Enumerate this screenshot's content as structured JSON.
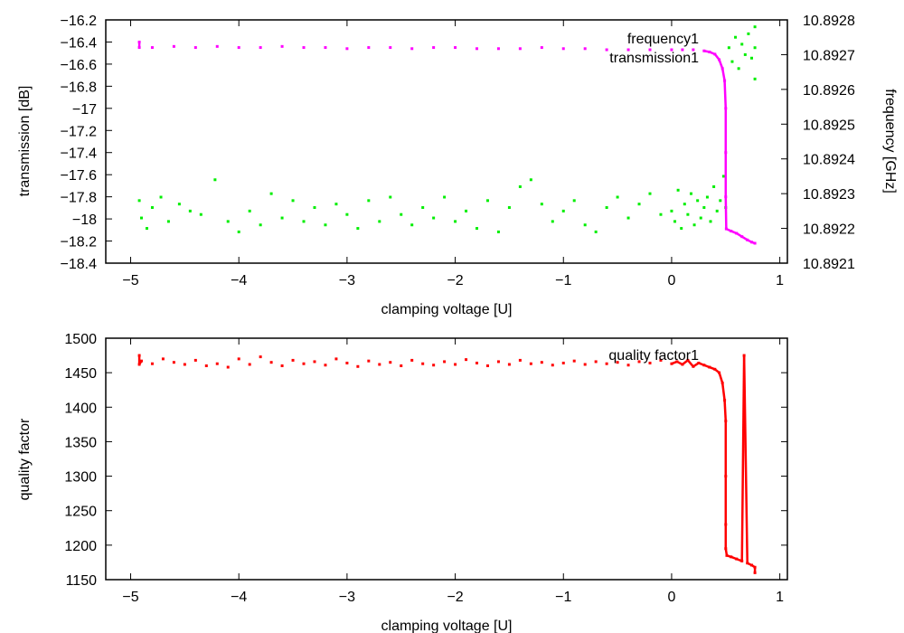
{
  "chart_data": [
    {
      "type": "scatter",
      "xlabel": "clamping voltage [U]",
      "ylabel": "transmission [dB]",
      "y2label": "frequency [GHz]",
      "xlim": [
        -5.23,
        1.07
      ],
      "ylim": [
        -18.4,
        -16.2
      ],
      "y2lim": [
        10.8921,
        10.8928
      ],
      "xticks": [
        -5,
        -4,
        -3,
        -2,
        -1,
        0,
        1
      ],
      "xtick_labels": [
        "−5",
        "−4",
        "−3",
        "−2",
        "−1",
        "0",
        "1"
      ],
      "yticks": [
        -16.2,
        -16.4,
        -16.6,
        -16.8,
        -17,
        -17.2,
        -17.4,
        -17.6,
        -17.8,
        -18,
        -18.2,
        -18.4
      ],
      "ytick_labels": [
        "−16.2",
        "−16.4",
        "−16.6",
        "−16.8",
        "−17",
        "−17.2",
        "−17.4",
        "−17.6",
        "−17.8",
        "−18",
        "−18.2",
        "−18.4"
      ],
      "y2ticks": [
        10.8928,
        10.8927,
        10.8926,
        10.8925,
        10.8924,
        10.8923,
        10.8922,
        10.8921
      ],
      "y2tick_labels": [
        "10.8928",
        "10.8927",
        "10.8926",
        "10.8925",
        "10.8924",
        "10.8923",
        "10.8922",
        "10.8921"
      ],
      "grid": false,
      "legend": "top-right",
      "series": [
        {
          "name": "frequency1",
          "axis": "y2",
          "color": "#00ee00",
          "x": [
            -4.92,
            -4.9,
            -4.85,
            -4.8,
            -4.72,
            -4.65,
            -4.55,
            -4.45,
            -4.35,
            -4.22,
            -4.1,
            -4.0,
            -3.9,
            -3.8,
            -3.7,
            -3.6,
            -3.5,
            -3.4,
            -3.3,
            -3.2,
            -3.1,
            -3.0,
            -2.9,
            -2.8,
            -2.7,
            -2.6,
            -2.5,
            -2.4,
            -2.3,
            -2.2,
            -2.1,
            -2.0,
            -1.9,
            -1.8,
            -1.7,
            -1.6,
            -1.5,
            -1.4,
            -1.3,
            -1.2,
            -1.1,
            -1.0,
            -0.9,
            -0.8,
            -0.7,
            -0.6,
            -0.5,
            -0.4,
            -0.3,
            -0.2,
            -0.1,
            0.0,
            0.03,
            0.06,
            0.09,
            0.12,
            0.15,
            0.18,
            0.21,
            0.24,
            0.27,
            0.3,
            0.33,
            0.36,
            0.39,
            0.42,
            0.45,
            0.48,
            0.5,
            0.53,
            0.56,
            0.59,
            0.62,
            0.65,
            0.68,
            0.71,
            0.74,
            0.77,
            0.77,
            0.77
          ],
          "y": [
            10.89228,
            10.89223,
            10.8922,
            10.89226,
            10.89229,
            10.89222,
            10.89227,
            10.89225,
            10.89224,
            10.89234,
            10.89222,
            10.89219,
            10.89225,
            10.89221,
            10.8923,
            10.89223,
            10.89228,
            10.89222,
            10.89226,
            10.89221,
            10.89227,
            10.89224,
            10.8922,
            10.89228,
            10.89222,
            10.89229,
            10.89224,
            10.89221,
            10.89226,
            10.89223,
            10.89229,
            10.89222,
            10.89225,
            10.8922,
            10.89228,
            10.89219,
            10.89226,
            10.89232,
            10.89234,
            10.89227,
            10.89222,
            10.89225,
            10.89228,
            10.89221,
            10.89219,
            10.89226,
            10.89229,
            10.89223,
            10.89227,
            10.8923,
            10.89224,
            10.89225,
            10.89222,
            10.89231,
            10.8922,
            10.89227,
            10.89224,
            10.8923,
            10.89221,
            10.89228,
            10.89223,
            10.89226,
            10.89229,
            10.89222,
            10.89232,
            10.89225,
            10.89228,
            10.89235,
            10.89226,
            10.89272,
            10.89268,
            10.89275,
            10.89266,
            10.89273,
            10.8927,
            10.89276,
            10.89269,
            10.89278,
            10.89263,
            10.89272
          ]
        },
        {
          "name": "transmission1",
          "axis": "y",
          "color": "#ff00ff",
          "x": [
            -4.92,
            -4.92,
            -4.8,
            -4.6,
            -4.4,
            -4.2,
            -4.0,
            -3.8,
            -3.6,
            -3.4,
            -3.2,
            -3.0,
            -2.8,
            -2.6,
            -2.4,
            -2.2,
            -2.0,
            -1.8,
            -1.6,
            -1.4,
            -1.2,
            -1.0,
            -0.8,
            -0.6,
            -0.4,
            -0.2,
            0.0,
            0.1,
            0.2,
            0.3,
            0.35,
            0.4,
            0.44,
            0.47,
            0.49,
            0.5,
            0.5,
            0.5,
            0.505,
            0.55,
            0.6,
            0.65,
            0.7,
            0.74,
            0.77
          ],
          "y": [
            -16.4,
            -16.45,
            -16.45,
            -16.44,
            -16.45,
            -16.44,
            -16.45,
            -16.45,
            -16.44,
            -16.45,
            -16.45,
            -16.46,
            -16.45,
            -16.45,
            -16.46,
            -16.45,
            -16.45,
            -16.46,
            -16.46,
            -16.46,
            -16.45,
            -16.46,
            -16.46,
            -16.47,
            -16.47,
            -16.47,
            -16.47,
            -16.47,
            -16.47,
            -16.48,
            -16.49,
            -16.51,
            -16.56,
            -16.64,
            -16.75,
            -17.0,
            -17.4,
            -17.8,
            -18.09,
            -18.11,
            -18.13,
            -18.16,
            -18.19,
            -18.21,
            -18.22
          ]
        }
      ]
    },
    {
      "type": "scatter",
      "xlabel": "clamping voltage [U]",
      "ylabel": "quality factor",
      "xlim": [
        -5.23,
        1.07
      ],
      "ylim": [
        1150,
        1500
      ],
      "xticks": [
        -5,
        -4,
        -3,
        -2,
        -1,
        0,
        1
      ],
      "xtick_labels": [
        "−5",
        "−4",
        "−3",
        "−2",
        "−1",
        "0",
        "1"
      ],
      "yticks": [
        1500,
        1450,
        1400,
        1350,
        1300,
        1250,
        1200,
        1150
      ],
      "ytick_labels": [
        "1500",
        "1450",
        "1400",
        "1350",
        "1300",
        "1250",
        "1200",
        "1150"
      ],
      "grid": false,
      "legend": "top-right",
      "series": [
        {
          "name": "quality factor1",
          "color": "#ff0000",
          "x": [
            -4.92,
            -4.92,
            -4.9,
            -4.8,
            -4.7,
            -4.6,
            -4.5,
            -4.4,
            -4.3,
            -4.2,
            -4.1,
            -4.0,
            -3.9,
            -3.8,
            -3.7,
            -3.6,
            -3.5,
            -3.4,
            -3.3,
            -3.2,
            -3.1,
            -3.0,
            -2.9,
            -2.8,
            -2.7,
            -2.6,
            -2.5,
            -2.4,
            -2.3,
            -2.2,
            -2.1,
            -2.0,
            -1.9,
            -1.8,
            -1.7,
            -1.6,
            -1.5,
            -1.4,
            -1.3,
            -1.2,
            -1.1,
            -1.0,
            -0.9,
            -0.8,
            -0.7,
            -0.6,
            -0.5,
            -0.4,
            -0.3,
            -0.2,
            -0.1,
            0.0,
            0.05,
            0.1,
            0.15,
            0.2,
            0.25,
            0.3,
            0.35,
            0.4,
            0.44,
            0.47,
            0.49,
            0.5,
            0.5,
            0.5,
            0.5,
            0.51,
            0.55,
            0.6,
            0.65,
            0.67,
            0.7,
            0.74,
            0.77,
            0.77
          ],
          "y": [
            1475,
            1462,
            1467,
            1463,
            1470,
            1465,
            1462,
            1468,
            1460,
            1463,
            1458,
            1470,
            1462,
            1473,
            1465,
            1460,
            1468,
            1463,
            1466,
            1461,
            1470,
            1464,
            1459,
            1467,
            1462,
            1465,
            1460,
            1468,
            1463,
            1461,
            1466,
            1462,
            1469,
            1464,
            1460,
            1466,
            1462,
            1468,
            1463,
            1465,
            1461,
            1464,
            1467,
            1462,
            1466,
            1463,
            1465,
            1461,
            1466,
            1464,
            1468,
            1463,
            1466,
            1462,
            1468,
            1459,
            1464,
            1461,
            1458,
            1455,
            1450,
            1435,
            1410,
            1380,
            1300,
            1230,
            1195,
            1185,
            1183,
            1180,
            1177,
            1475,
            1174,
            1171,
            1168,
            1160
          ]
        }
      ]
    }
  ]
}
